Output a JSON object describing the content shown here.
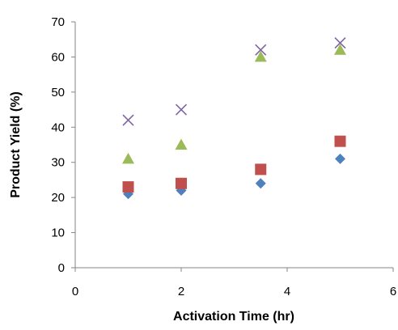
{
  "chart_data": {
    "type": "scatter",
    "title": "",
    "xlabel": "Activation Time (hr)",
    "ylabel": "Product Yield (%)",
    "xlim": [
      0,
      6
    ],
    "ylim": [
      0,
      70
    ],
    "xticks": [
      0,
      2,
      4,
      6
    ],
    "yticks": [
      0,
      10,
      20,
      30,
      40,
      50,
      60,
      70
    ],
    "grid": false,
    "legend": "none",
    "series": [
      {
        "marker": "diamond",
        "color": "#4F81BD",
        "x": [
          1,
          2,
          3.5,
          5
        ],
        "y": [
          21,
          22,
          24,
          31
        ]
      },
      {
        "marker": "square",
        "color": "#C0504D",
        "x": [
          1,
          2,
          3.5,
          5
        ],
        "y": [
          23,
          24,
          28,
          36
        ]
      },
      {
        "marker": "triangle",
        "color": "#9BBB59",
        "x": [
          1,
          2,
          3.5,
          5
        ],
        "y": [
          31,
          35,
          60,
          62
        ]
      },
      {
        "marker": "x",
        "color": "#8064A2",
        "x": [
          1,
          2,
          3.5,
          5
        ],
        "y": [
          42,
          45,
          62,
          64
        ]
      }
    ]
  }
}
